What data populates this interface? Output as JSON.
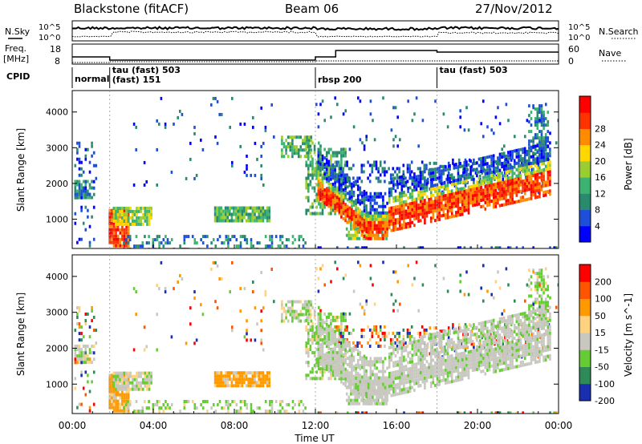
{
  "header": {
    "station": "Blackstone (fitACF)",
    "beam": "Beam 06",
    "date": "27/Nov/2012"
  },
  "labels": {
    "nsky": "N.Sky",
    "nsearch": "N.Search",
    "freq_line1": "Freq.",
    "freq_line2": "[MHz]",
    "nave": "Nave",
    "cpid": "CPID"
  },
  "cpid_modes": [
    {
      "name": "normal",
      "start_hour": 0
    },
    {
      "name": "tau (fast) 503",
      "start_hour": 1.85
    },
    {
      "name": "(fast) 151",
      "start_hour": 1.85
    },
    {
      "name": "rbsp 200",
      "start_hour": 12
    },
    {
      "name": "tau (fast) 503",
      "start_hour": 18
    }
  ],
  "noise_axis": {
    "left_top": "10^5",
    "left_bottom": "10^0",
    "right_top": "10^5",
    "right_bottom": "10^0"
  },
  "freq_axis": {
    "left_ticks": [
      "18",
      "8"
    ],
    "right_ticks": [
      "60",
      "0"
    ]
  },
  "chart_data": [
    {
      "type": "heatmap",
      "name": "power",
      "ylabel": "Slant Range [km]",
      "colorbar_label": "Power [dB]",
      "ylim": [
        180,
        4600
      ],
      "y_ticks": [
        1000,
        2000,
        3000,
        4000
      ],
      "colorbar_ticks": [
        4,
        8,
        12,
        16,
        20,
        24,
        28
      ],
      "colors": [
        "#0000ff",
        "#1e4fd8",
        "#2a8a6e",
        "#3cb371",
        "#9acd32",
        "#ffd700",
        "#ff8c00",
        "#ff3300",
        "#ff0000"
      ]
    },
    {
      "type": "heatmap",
      "name": "velocity",
      "ylabel": "Slant Range [km]",
      "colorbar_label": "Velocity [m s^-1]",
      "ylim": [
        180,
        4600
      ],
      "y_ticks": [
        1000,
        2000,
        3000,
        4000
      ],
      "colorbar_ticks": [
        200,
        100,
        50,
        15,
        -15,
        -50,
        -100,
        -200
      ],
      "colors": [
        "#1a2fb0",
        "#2e8b57",
        "#66cc33",
        "#c8c8c0",
        "#ffd27f",
        "#ff9900",
        "#ff5500",
        "#ff0000"
      ]
    }
  ],
  "x_axis": {
    "label": "Time UT",
    "ticks": [
      "00:00",
      "04:00",
      "08:00",
      "12:00",
      "16:00",
      "20:00",
      "00:00"
    ],
    "xlim": [
      0,
      24
    ]
  }
}
